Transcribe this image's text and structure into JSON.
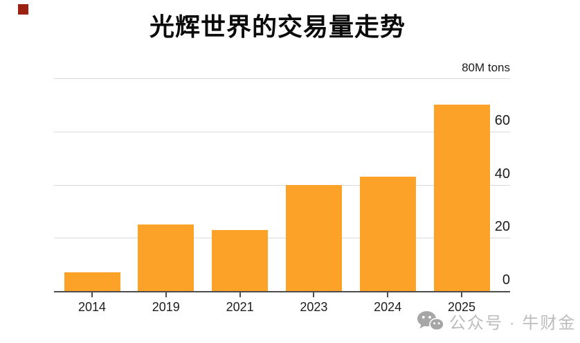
{
  "decoration": {
    "red_square_color": "#9b2213"
  },
  "chart_data": {
    "type": "bar",
    "title": "光辉世界的交易量走势",
    "unit_label": "80M tons",
    "categories": [
      "2014",
      "2019",
      "2021",
      "2023",
      "2024",
      "2025"
    ],
    "values": [
      7,
      25,
      23,
      40,
      43,
      70
    ],
    "y_ticks": [
      0,
      20,
      40,
      60,
      80
    ],
    "ylim": [
      0,
      80
    ],
    "xlabel": "",
    "ylabel": "M tons",
    "grid": true,
    "legend": "none",
    "axis_labels_position": "right",
    "bar_color": "#FCA228",
    "gridline_color": "#d9d9d9",
    "axis_color": "#4d4d4d",
    "label_color": "#1c1c1c"
  },
  "watermark": {
    "icon": "wechat-icon",
    "text": "公众号 · 牛财金",
    "text_color": "#bcbcbc",
    "icon_color": "#a6a6a6"
  }
}
